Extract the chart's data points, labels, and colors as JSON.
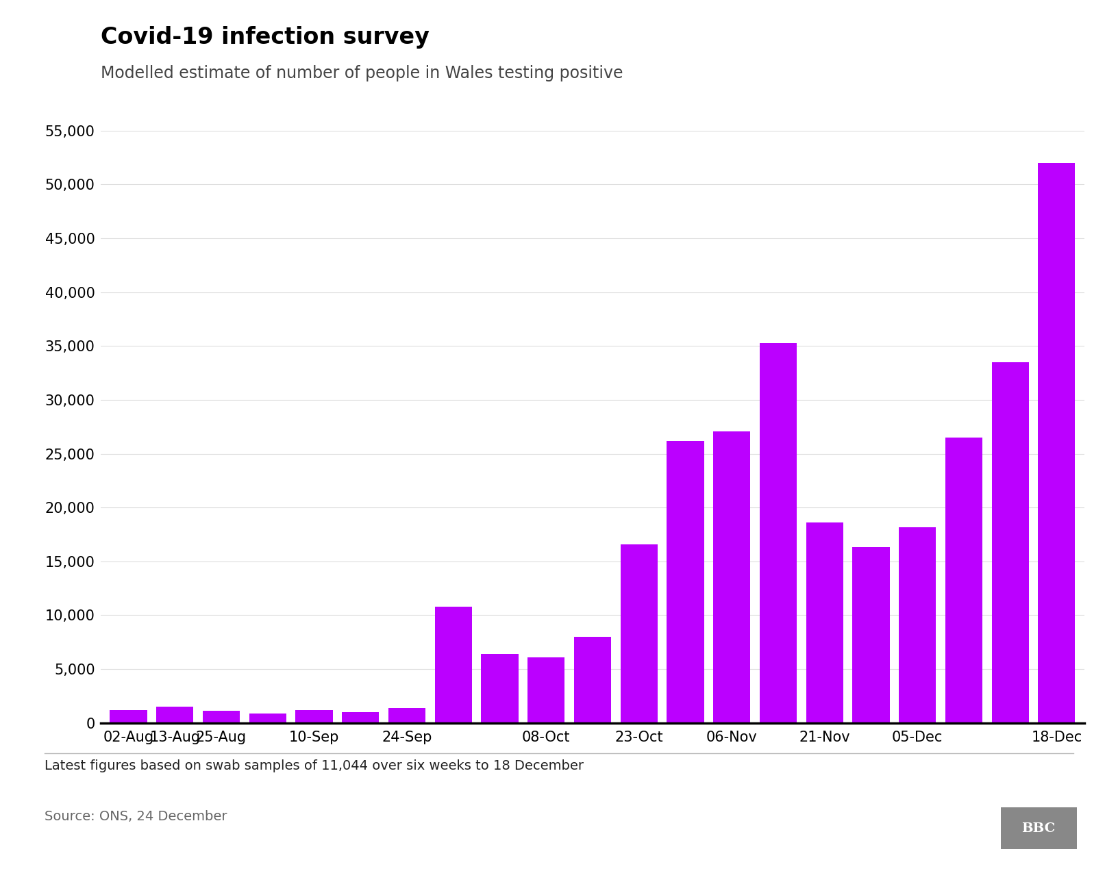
{
  "title": "Covid-19 infection survey",
  "subtitle": "Modelled estimate of number of people in Wales testing positive",
  "footnote": "Latest figures based on swab samples of 11,044 over six weeks to 18 December",
  "source": "Source: ONS, 24 December",
  "bar_color": "#bb00ff",
  "background_color": "#ffffff",
  "ylim_max": 55000,
  "yticks": [
    0,
    5000,
    10000,
    15000,
    20000,
    25000,
    30000,
    35000,
    40000,
    45000,
    50000,
    55000
  ],
  "title_fontsize": 24,
  "subtitle_fontsize": 17,
  "tick_fontsize": 15,
  "footnote_fontsize": 14,
  "bar_values": [
    1200,
    1500,
    1100,
    900,
    1200,
    1000,
    1400,
    10800,
    6400,
    6100,
    8000,
    16600,
    26200,
    27100,
    35300,
    18600,
    16300,
    18200,
    26500,
    33500,
    52000
  ],
  "tick_positions": [
    0,
    1,
    2,
    4,
    6,
    9,
    11,
    13,
    15,
    17,
    20
  ],
  "tick_labels": [
    "02-Aug",
    "13-Aug",
    "25-Aug",
    "10-Sep",
    "24-Sep",
    "08-Oct",
    "23-Oct",
    "06-Nov",
    "21-Nov",
    "05-Dec",
    "18-Dec"
  ]
}
